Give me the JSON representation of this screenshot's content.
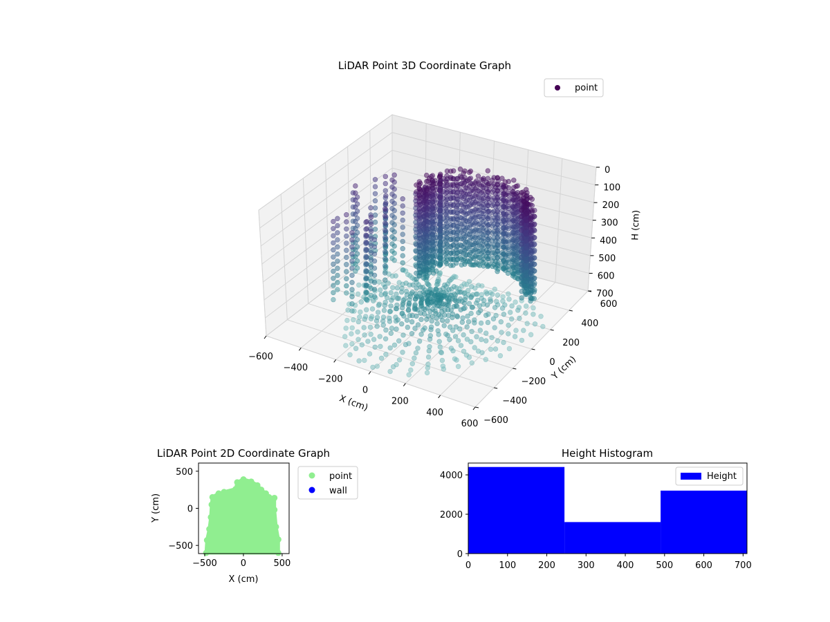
{
  "chart_data": [
    {
      "type": "scatter",
      "projection": "3d",
      "title": "LiDAR Point 3D Coordinate Graph",
      "xlabel": "X (cm)",
      "ylabel": "Y (cm)",
      "zlabel": "H (cm)",
      "xlim": [
        -600,
        600
      ],
      "ylim": [
        -600,
        600
      ],
      "zlim": [
        700,
        0
      ],
      "zaxis_inverted": true,
      "xticks": [
        "−600",
        "−400",
        "−200",
        "0",
        "200",
        "400",
        "600"
      ],
      "yticks": [
        "−600",
        "−400",
        "−200",
        "0",
        "200",
        "400",
        "600"
      ],
      "zticks": [
        "0",
        "100",
        "200",
        "300",
        "400",
        "500",
        "600",
        "700"
      ],
      "grid": true,
      "legend": {
        "position": "upper-right",
        "entries": [
          "point"
        ]
      },
      "series": [
        {
          "name": "point",
          "colormap": "viridis",
          "color": "#440154",
          "structure": "room scan: points on rays radiating from origin, a tall wall band of height 0-600 cm around the room and floor points near 650-700 cm",
          "room_x_range": [
            -550,
            450
          ],
          "room_y_range": [
            -600,
            450
          ],
          "height_range": [
            0,
            700
          ]
        }
      ]
    },
    {
      "type": "scatter",
      "title": "LiDAR Point 2D Coordinate Graph",
      "xlabel": "X (cm)",
      "ylabel": "Y (cm)",
      "xlim": [
        -580,
        590
      ],
      "ylim": [
        -610,
        610
      ],
      "xticks": [
        "−500",
        "0",
        "500"
      ],
      "yticks": [
        "−500",
        "0",
        "500"
      ],
      "legend": {
        "position": "outside-right",
        "entries": [
          "point",
          "wall"
        ]
      },
      "series": [
        {
          "name": "point",
          "color": "#90ee90",
          "outline": [
            [
              -480,
              -600
            ],
            [
              -470,
              -430
            ],
            [
              -440,
              -280
            ],
            [
              -420,
              -120
            ],
            [
              -410,
              50
            ],
            [
              -400,
              150
            ],
            [
              -320,
              200
            ],
            [
              -250,
              220
            ],
            [
              -100,
              260
            ],
            [
              -80,
              350
            ],
            [
              0,
              390
            ],
            [
              100,
              360
            ],
            [
              180,
              310
            ],
            [
              230,
              250
            ],
            [
              290,
              200
            ],
            [
              330,
              150
            ],
            [
              400,
              140
            ],
            [
              400,
              -20
            ],
            [
              420,
              -250
            ],
            [
              450,
              -420
            ],
            [
              450,
              -600
            ]
          ]
        },
        {
          "name": "wall",
          "color": "#0000ff",
          "points": []
        }
      ]
    },
    {
      "type": "bar",
      "subtype": "histogram",
      "title": "Height Histogram",
      "xlim": [
        0,
        710
      ],
      "ylim": [
        0,
        4600
      ],
      "xticks": [
        "0",
        "100",
        "200",
        "300",
        "400",
        "500",
        "600",
        "700"
      ],
      "yticks": [
        "0",
        "2000",
        "4000"
      ],
      "legend": {
        "position": "upper-right",
        "entries": [
          "Height"
        ]
      },
      "series": [
        {
          "name": "Height",
          "color": "#0000ff",
          "bins": [
            0,
            245,
            490,
            710
          ],
          "values": [
            4400,
            1600,
            3200
          ]
        }
      ]
    }
  ]
}
